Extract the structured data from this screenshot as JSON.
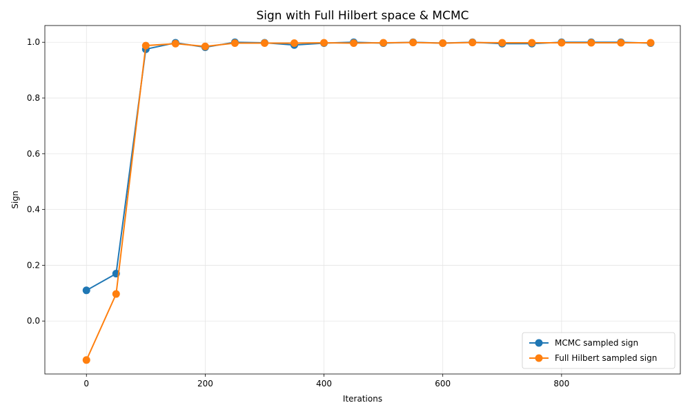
{
  "chart_data": {
    "type": "line",
    "title": "Sign with Full Hilbert space & MCMC",
    "xlabel": "Iterations",
    "ylabel": "Sign",
    "xlim": [
      -70,
      1000
    ],
    "ylim": [
      -0.19,
      1.06
    ],
    "xticks": [
      0,
      200,
      400,
      600,
      800
    ],
    "yticks": [
      0.0,
      0.2,
      0.4,
      0.6,
      0.8,
      1.0
    ],
    "grid": true,
    "legend_position": "lower-right",
    "x": [
      0,
      50,
      100,
      150,
      200,
      250,
      300,
      350,
      400,
      450,
      500,
      550,
      600,
      650,
      700,
      750,
      800,
      850,
      900,
      950
    ],
    "series": [
      {
        "name": "MCMC sampled sign",
        "color": "#1f77b4",
        "values": [
          0.11,
          0.17,
          0.975,
          0.998,
          0.982,
          1.0,
          0.998,
          0.99,
          0.997,
          1.0,
          0.997,
          1.0,
          0.997,
          1.0,
          0.995,
          0.995,
          1.0,
          1.0,
          1.0,
          0.997
        ]
      },
      {
        "name": "Full Hilbert sampled sign",
        "color": "#ff7f0e",
        "values": [
          -0.14,
          0.097,
          0.988,
          0.995,
          0.985,
          0.997,
          0.997,
          0.997,
          0.998,
          0.997,
          0.998,
          0.999,
          0.997,
          0.999,
          0.998,
          0.998,
          0.998,
          0.998,
          0.998,
          0.998
        ]
      }
    ]
  }
}
